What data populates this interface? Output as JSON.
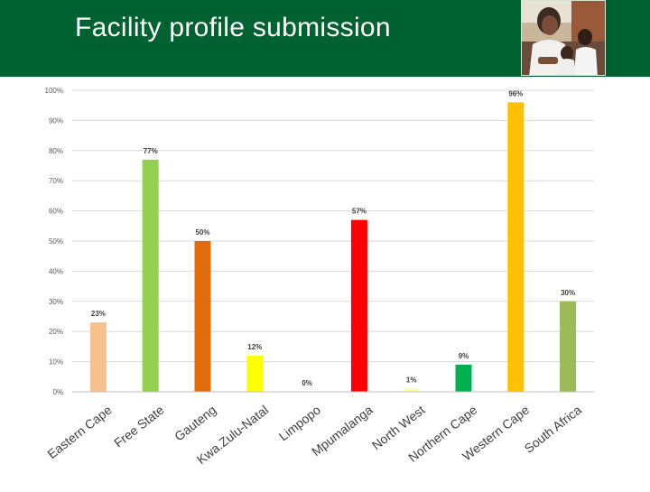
{
  "header": {
    "title": "Facility profile submission"
  },
  "chart_data": {
    "type": "bar",
    "title": "",
    "xlabel": "",
    "ylabel": "",
    "ylim": [
      0,
      100
    ],
    "y_ticks": [
      "0%",
      "10%",
      "20%",
      "30%",
      "40%",
      "50%",
      "60%",
      "70%",
      "80%",
      "90%",
      "100%"
    ],
    "grid": true,
    "categories": [
      "Eastern Cape",
      "Free State",
      "Gauteng",
      "Kwa.Zulu-Natal",
      "Limpopo",
      "Mpumalanga",
      "North West",
      "Northern Cape",
      "Western Cape",
      "South Africa"
    ],
    "values": [
      23,
      77,
      50,
      12,
      0,
      57,
      1,
      9,
      96,
      30
    ],
    "labels": [
      "23%",
      "77%",
      "50%",
      "12%",
      "0%",
      "57%",
      "1%",
      "9%",
      "96%",
      "30%"
    ],
    "colors": [
      "#f8c08e",
      "#92d050",
      "#e26b0a",
      "#ffff00",
      "#bfbfbf",
      "#ff0000",
      "#ffff99",
      "#00b050",
      "#ffc000",
      "#9bbb59"
    ]
  },
  "colors": {
    "header_bg": "#006131",
    "header_text": "#ffffff"
  }
}
